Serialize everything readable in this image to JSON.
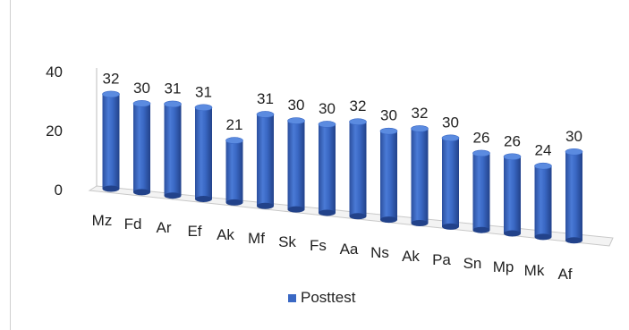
{
  "chart_data": {
    "type": "bar",
    "bar_style": "3d-cylinder",
    "categories": [
      "Mz",
      "Fd",
      "Ar",
      "Ef",
      "Ak",
      "Mf",
      "Sk",
      "Fs",
      "Aa",
      "Ns",
      "Ak",
      "Pa",
      "Sn",
      "Mp",
      "Mk",
      "Af"
    ],
    "series": [
      {
        "name": "Posttest",
        "values": [
          32,
          30,
          31,
          31,
          21,
          31,
          30,
          30,
          32,
          30,
          32,
          30,
          26,
          26,
          24,
          30
        ],
        "color": "#3a68c4"
      }
    ],
    "data_labels": [
      "32",
      "30",
      "31",
      "31",
      "21",
      "31",
      "30",
      "30",
      "32",
      "30",
      "32",
      "30",
      "26",
      "26",
      "24",
      "30"
    ],
    "y_ticks": [
      "0",
      "20",
      "40"
    ],
    "ylim": [
      0,
      40
    ],
    "legend_position": "bottom",
    "grid": false
  }
}
